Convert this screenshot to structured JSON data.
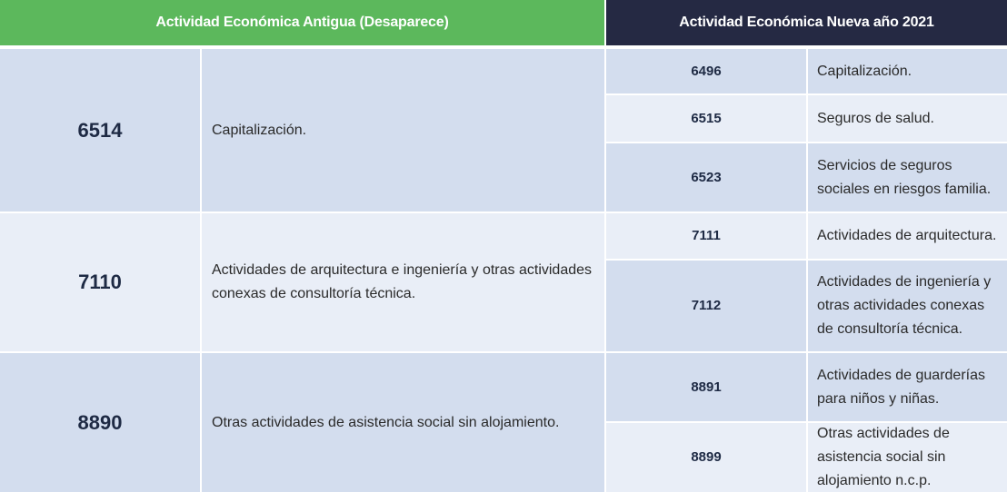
{
  "header": {
    "old_title": "Actividad Económica Antigua (Desaparece)",
    "new_title": "Actividad Económica Nueva año 2021"
  },
  "groups": [
    {
      "old_code": "6514",
      "old_desc": "Capitalización.",
      "new_items": [
        {
          "code": "6496",
          "desc": "Capitalización."
        },
        {
          "code": "6515",
          "desc": "Seguros de salud."
        },
        {
          "code": "6523",
          "desc": "Servicios de seguros sociales en riesgos familia."
        }
      ]
    },
    {
      "old_code": "7110",
      "old_desc": "Actividades de arquitectura e ingeniería y otras actividades conexas de consultoría técnica.",
      "new_items": [
        {
          "code": "7111",
          "desc": "Actividades de arquitectura."
        },
        {
          "code": "7112",
          "desc": "Actividades de ingeniería y otras actividades conexas de consultoría técnica."
        }
      ]
    },
    {
      "old_code": "8890",
      "old_desc": "Otras actividades de asistencia social sin alojamiento.",
      "new_items": [
        {
          "code": "8891",
          "desc": "Actividades de guarderías para niños y niñas."
        },
        {
          "code": "8899",
          "desc": "Otras actividades de asistencia social sin alojamiento n.c.p."
        }
      ]
    }
  ]
}
